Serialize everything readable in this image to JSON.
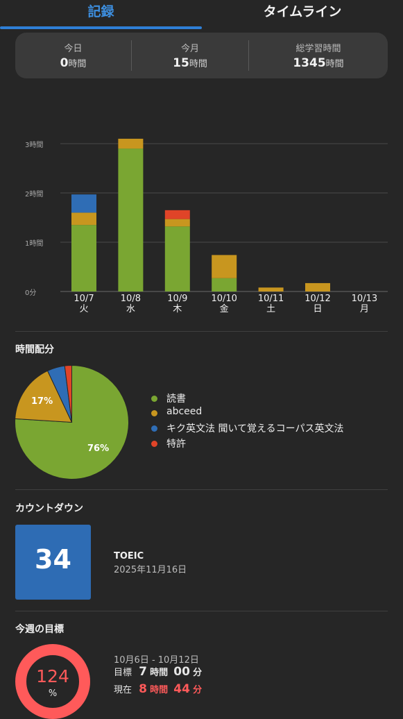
{
  "tabs": {
    "records": "記録",
    "timeline": "タイムライン"
  },
  "stats": [
    {
      "label": "今日",
      "value": "0",
      "unit": "時間"
    },
    {
      "label": "今月",
      "value": "15",
      "unit": "時間"
    },
    {
      "label": "総学習時間",
      "value": "1345",
      "unit": "時間"
    }
  ],
  "colors": {
    "reading": "#7aa632",
    "abceed": "#c8961f",
    "kiku": "#2f6db5",
    "patent": "#e04428"
  },
  "chart_data": {
    "type": "bar",
    "stacked": true,
    "categories": [
      "10/7",
      "10/8",
      "10/9",
      "10/10",
      "10/11",
      "10/12",
      "10/13"
    ],
    "weekdays": [
      "火",
      "水",
      "木",
      "金",
      "土",
      "日",
      "月"
    ],
    "y_ticks": [
      "0分",
      "1時間",
      "2時間",
      "3時間"
    ],
    "ylim_hours": [
      0,
      3
    ],
    "series": [
      {
        "key": "reading",
        "values": [
          1.35,
          2.9,
          1.32,
          0.27,
          0,
          0,
          0
        ]
      },
      {
        "key": "abceed",
        "values": [
          0.25,
          0.2,
          0.15,
          0.47,
          0.08,
          0.17,
          0
        ]
      },
      {
        "key": "kiku",
        "values": [
          0.37,
          0,
          0,
          0,
          0,
          0,
          0
        ]
      },
      {
        "key": "patent",
        "values": [
          0,
          0,
          0.18,
          0,
          0,
          0,
          0
        ]
      }
    ]
  },
  "distribution": {
    "title": "時間配分",
    "pie": [
      {
        "key": "reading",
        "label": "読書",
        "percent": 76,
        "show": "76%"
      },
      {
        "key": "abceed",
        "label": "abceed",
        "percent": 17,
        "show": "17%"
      },
      {
        "key": "kiku",
        "label": "キク英文法 聞いて覚えるコーパス英文法",
        "percent": 5,
        "show": ""
      },
      {
        "key": "patent",
        "label": "特許",
        "percent": 2,
        "show": ""
      }
    ]
  },
  "countdown": {
    "title": "カウントダウン",
    "days": "34",
    "event": "TOEIC",
    "date": "2025年11月16日"
  },
  "goal": {
    "title": "今週の目標",
    "percent": "124",
    "percent_symbol": "%",
    "progress": 1.24,
    "range": "10月6日 - 10月12日",
    "target_label": "目標",
    "target_hours": "7",
    "target_minutes": "00",
    "current_label": "現在",
    "current_hours": "8",
    "current_minutes": "44",
    "hour_unit": "時間",
    "minute_unit": "分"
  }
}
